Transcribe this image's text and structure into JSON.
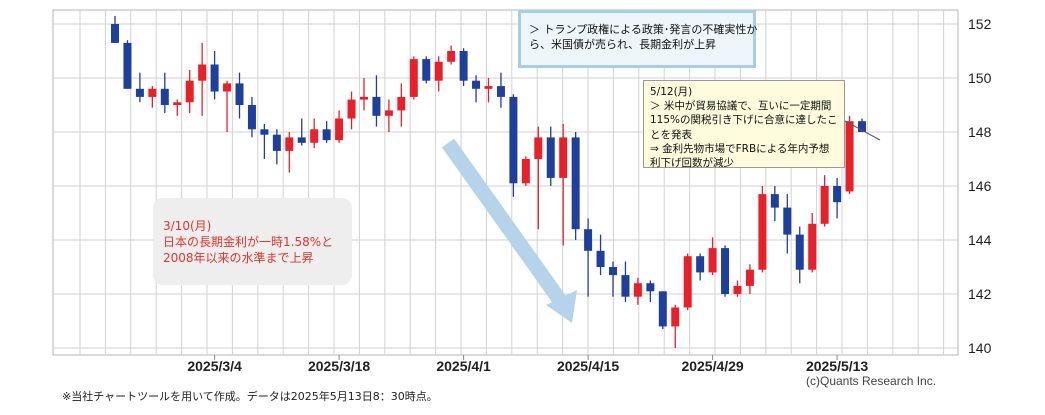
{
  "chart_data": {
    "type": "candlestick",
    "ylim": [
      139.8,
      152.6
    ],
    "yticks": [
      140,
      142,
      144,
      146,
      148,
      150,
      152
    ],
    "xtick_labels": [
      {
        "label": "2025/3/4",
        "index": 8
      },
      {
        "label": "2025/3/18",
        "index": 18
      },
      {
        "label": "2025/4/1",
        "index": 28
      },
      {
        "label": "2025/4/15",
        "index": 38
      },
      {
        "label": "2025/4/29",
        "index": 48
      },
      {
        "label": "2025/5/13",
        "index": 58
      }
    ],
    "grid": true,
    "up_color": "#e8202a",
    "down_color": "#1f3f9c",
    "candles": [
      {
        "o": 152.0,
        "h": 152.3,
        "l": 151.3,
        "c": 151.3
      },
      {
        "o": 151.3,
        "h": 151.4,
        "l": 149.6,
        "c": 149.6
      },
      {
        "o": 149.6,
        "h": 150.2,
        "l": 149.1,
        "c": 149.3
      },
      {
        "o": 149.3,
        "h": 149.7,
        "l": 148.9,
        "c": 149.6
      },
      {
        "o": 149.6,
        "h": 150.2,
        "l": 148.7,
        "c": 149.0
      },
      {
        "o": 149.0,
        "h": 149.2,
        "l": 148.6,
        "c": 149.1
      },
      {
        "o": 149.1,
        "h": 150.3,
        "l": 148.7,
        "c": 149.9
      },
      {
        "o": 149.9,
        "h": 151.3,
        "l": 148.6,
        "c": 150.5
      },
      {
        "o": 150.5,
        "h": 151.0,
        "l": 149.2,
        "c": 149.5
      },
      {
        "o": 149.5,
        "h": 149.9,
        "l": 148.0,
        "c": 149.8
      },
      {
        "o": 149.8,
        "h": 150.2,
        "l": 148.5,
        "c": 149.0
      },
      {
        "o": 149.0,
        "h": 149.3,
        "l": 147.8,
        "c": 148.1
      },
      {
        "o": 148.1,
        "h": 148.3,
        "l": 147.0,
        "c": 147.9
      },
      {
        "o": 147.9,
        "h": 148.1,
        "l": 146.8,
        "c": 147.3
      },
      {
        "o": 147.3,
        "h": 148.0,
        "l": 146.5,
        "c": 147.8
      },
      {
        "o": 147.8,
        "h": 148.5,
        "l": 147.5,
        "c": 147.6
      },
      {
        "o": 147.6,
        "h": 148.5,
        "l": 147.4,
        "c": 148.1
      },
      {
        "o": 148.1,
        "h": 148.4,
        "l": 147.6,
        "c": 147.7
      },
      {
        "o": 147.7,
        "h": 148.8,
        "l": 147.6,
        "c": 148.5
      },
      {
        "o": 148.5,
        "h": 149.5,
        "l": 148.1,
        "c": 149.2
      },
      {
        "o": 149.2,
        "h": 150.0,
        "l": 148.8,
        "c": 149.3
      },
      {
        "o": 149.3,
        "h": 150.1,
        "l": 148.2,
        "c": 148.6
      },
      {
        "o": 148.6,
        "h": 149.2,
        "l": 148.0,
        "c": 148.8
      },
      {
        "o": 148.8,
        "h": 149.8,
        "l": 148.2,
        "c": 149.3
      },
      {
        "o": 149.3,
        "h": 150.8,
        "l": 149.2,
        "c": 150.7
      },
      {
        "o": 150.7,
        "h": 150.8,
        "l": 149.8,
        "c": 149.9
      },
      {
        "o": 149.9,
        "h": 150.8,
        "l": 149.5,
        "c": 150.6
      },
      {
        "o": 150.6,
        "h": 151.2,
        "l": 150.5,
        "c": 151.0
      },
      {
        "o": 151.0,
        "h": 151.1,
        "l": 149.7,
        "c": 149.9
      },
      {
        "o": 149.9,
        "h": 150.1,
        "l": 149.1,
        "c": 149.6
      },
      {
        "o": 149.6,
        "h": 150.0,
        "l": 149.1,
        "c": 149.7
      },
      {
        "o": 149.7,
        "h": 150.2,
        "l": 148.9,
        "c": 149.3
      },
      {
        "o": 149.3,
        "h": 149.4,
        "l": 145.6,
        "c": 146.1
      },
      {
        "o": 146.1,
        "h": 147.1,
        "l": 146.0,
        "c": 147.0
      },
      {
        "o": 147.0,
        "h": 148.2,
        "l": 144.4,
        "c": 147.8
      },
      {
        "o": 147.8,
        "h": 148.2,
        "l": 146.0,
        "c": 146.3
      },
      {
        "o": 146.3,
        "h": 148.3,
        "l": 143.8,
        "c": 147.8
      },
      {
        "o": 147.8,
        "h": 148.0,
        "l": 144.0,
        "c": 144.4
      },
      {
        "o": 144.4,
        "h": 144.8,
        "l": 141.9,
        "c": 143.6
      },
      {
        "o": 143.6,
        "h": 144.2,
        "l": 142.7,
        "c": 143.0
      },
      {
        "o": 143.0,
        "h": 143.2,
        "l": 141.9,
        "c": 142.7
      },
      {
        "o": 142.7,
        "h": 143.2,
        "l": 141.7,
        "c": 141.9
      },
      {
        "o": 141.9,
        "h": 142.6,
        "l": 141.6,
        "c": 142.4
      },
      {
        "o": 142.4,
        "h": 142.5,
        "l": 141.7,
        "c": 142.1
      },
      {
        "o": 142.1,
        "h": 142.1,
        "l": 140.7,
        "c": 140.8
      },
      {
        "o": 140.8,
        "h": 141.6,
        "l": 140.0,
        "c": 141.5
      },
      {
        "o": 141.5,
        "h": 143.5,
        "l": 141.4,
        "c": 143.4
      },
      {
        "o": 143.4,
        "h": 143.5,
        "l": 142.5,
        "c": 142.8
      },
      {
        "o": 142.8,
        "h": 144.1,
        "l": 142.7,
        "c": 143.7
      },
      {
        "o": 143.7,
        "h": 143.8,
        "l": 141.9,
        "c": 142.0
      },
      {
        "o": 142.0,
        "h": 142.5,
        "l": 141.9,
        "c": 142.3
      },
      {
        "o": 142.3,
        "h": 143.1,
        "l": 142.0,
        "c": 142.9
      },
      {
        "o": 142.9,
        "h": 146.0,
        "l": 142.8,
        "c": 145.7
      },
      {
        "o": 145.7,
        "h": 146.0,
        "l": 144.7,
        "c": 145.2
      },
      {
        "o": 145.2,
        "h": 145.7,
        "l": 143.5,
        "c": 144.2
      },
      {
        "o": 144.2,
        "h": 144.5,
        "l": 142.4,
        "c": 142.9
      },
      {
        "o": 142.9,
        "h": 145.0,
        "l": 142.8,
        "c": 144.6
      },
      {
        "o": 144.6,
        "h": 146.4,
        "l": 144.5,
        "c": 146.0
      },
      {
        "o": 146.0,
        "h": 146.3,
        "l": 144.8,
        "c": 145.4
      },
      {
        "o": 145.8,
        "h": 148.6,
        "l": 145.7,
        "c": 148.4
      },
      {
        "o": 148.4,
        "h": 148.5,
        "l": 148.0,
        "c": 148.0
      }
    ]
  },
  "annotations": {
    "trump_lines": [
      "＞ トランプ政権による政策･発言の不確実性か",
      "ら、米国債が売られ、長期金利が上昇"
    ],
    "may12_lines": [
      "5/12(月)",
      "＞ 米中が貿易協議で、互いに一定期間",
      "115%の関税引き下げに合意に達したこ",
      "とを発表",
      "⇒ 金利先物市場でFRBによる年内予想",
      "利下げ回数が減少"
    ],
    "mar10_lines": [
      "3/10(月)",
      "日本の長期金利が一時1.58%と",
      "2008年以来の水準まで上昇"
    ]
  },
  "footnote": "※当社チャートツールを用いて作成。データは2025年5月13日8：30時点。",
  "copyright": "(c)Quants Research Inc."
}
